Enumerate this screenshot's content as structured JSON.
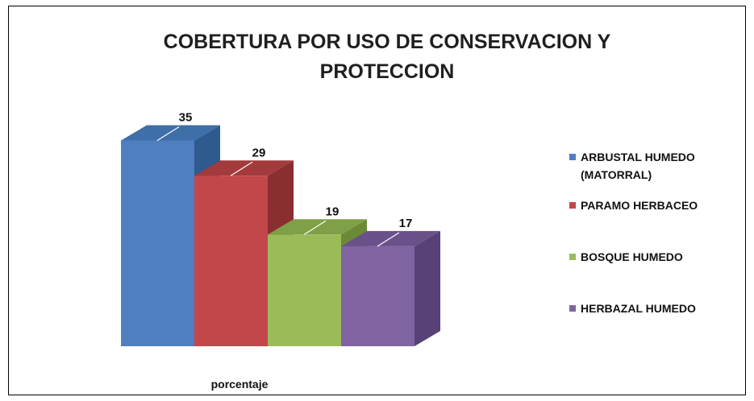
{
  "chart_data": {
    "type": "bar",
    "title_lines": [
      "COBERTURA POR USO DE CONSERVACION Y",
      "PROTECCION"
    ],
    "xlabel": "porcentaje",
    "ylabel": "",
    "ylim": [
      0,
      35
    ],
    "grid": false,
    "legend_position": "right",
    "categories": [
      "porcentaje"
    ],
    "series": [
      {
        "name": "ARBUSTAL HUMEDO (MATORRAL)",
        "legend_lines": [
          "ARBUSTAL HUMEDO",
          "(MATORRAL)"
        ],
        "values": [
          35
        ],
        "color": "#4f7fc0",
        "top": "#3f6fa8",
        "side": "#2e5a8e"
      },
      {
        "name": "PARAMO HERBACEO",
        "legend_lines": [
          "PARAMO HERBACEO"
        ],
        "values": [
          29
        ],
        "color": "#c2474a",
        "top": "#a33a3c",
        "side": "#8a2e30"
      },
      {
        "name": "BOSQUE HUMEDO",
        "legend_lines": [
          "BOSQUE HUMEDO"
        ],
        "values": [
          19
        ],
        "color": "#9bbb59",
        "top": "#7fa046",
        "side": "#6b8a38"
      },
      {
        "name": "HERBAZAL HUMEDO",
        "legend_lines": [
          "HERBAZAL HUMEDO"
        ],
        "values": [
          17
        ],
        "color": "#8064a2",
        "top": "#6a518a",
        "side": "#574176"
      }
    ]
  }
}
